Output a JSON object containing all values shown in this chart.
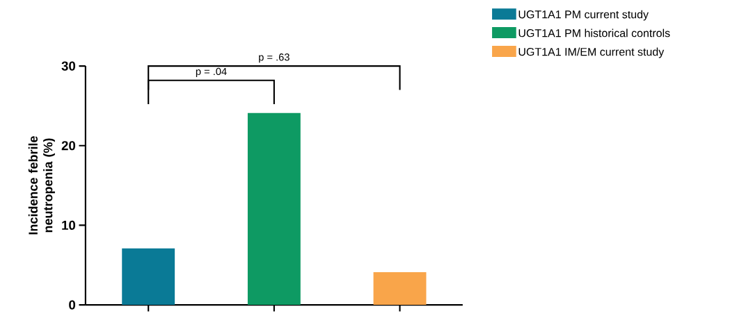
{
  "chart_data": {
    "type": "bar",
    "ylabel": "Incidence febrile neutropenia (%)",
    "categories": [
      null,
      null,
      null
    ],
    "series": [
      {
        "name": "UGT1A1 PM current study",
        "color": "#0a7a96",
        "values": [
          7.1,
          null,
          null
        ]
      },
      {
        "name": "UGT1A1 PM historical controls",
        "color": "#0e9a63",
        "values": [
          null,
          24.1,
          null
        ]
      },
      {
        "name": "UGT1A1 IM/EM current study",
        "color": "#f9a54a",
        "values": [
          null,
          null,
          4.1
        ]
      }
    ],
    "ylim": [
      0,
      30
    ],
    "yticks": [
      0,
      10,
      20,
      30
    ],
    "grid": false,
    "legend": "top right",
    "annotations": [
      "p = .04",
      "p = .63"
    ]
  }
}
